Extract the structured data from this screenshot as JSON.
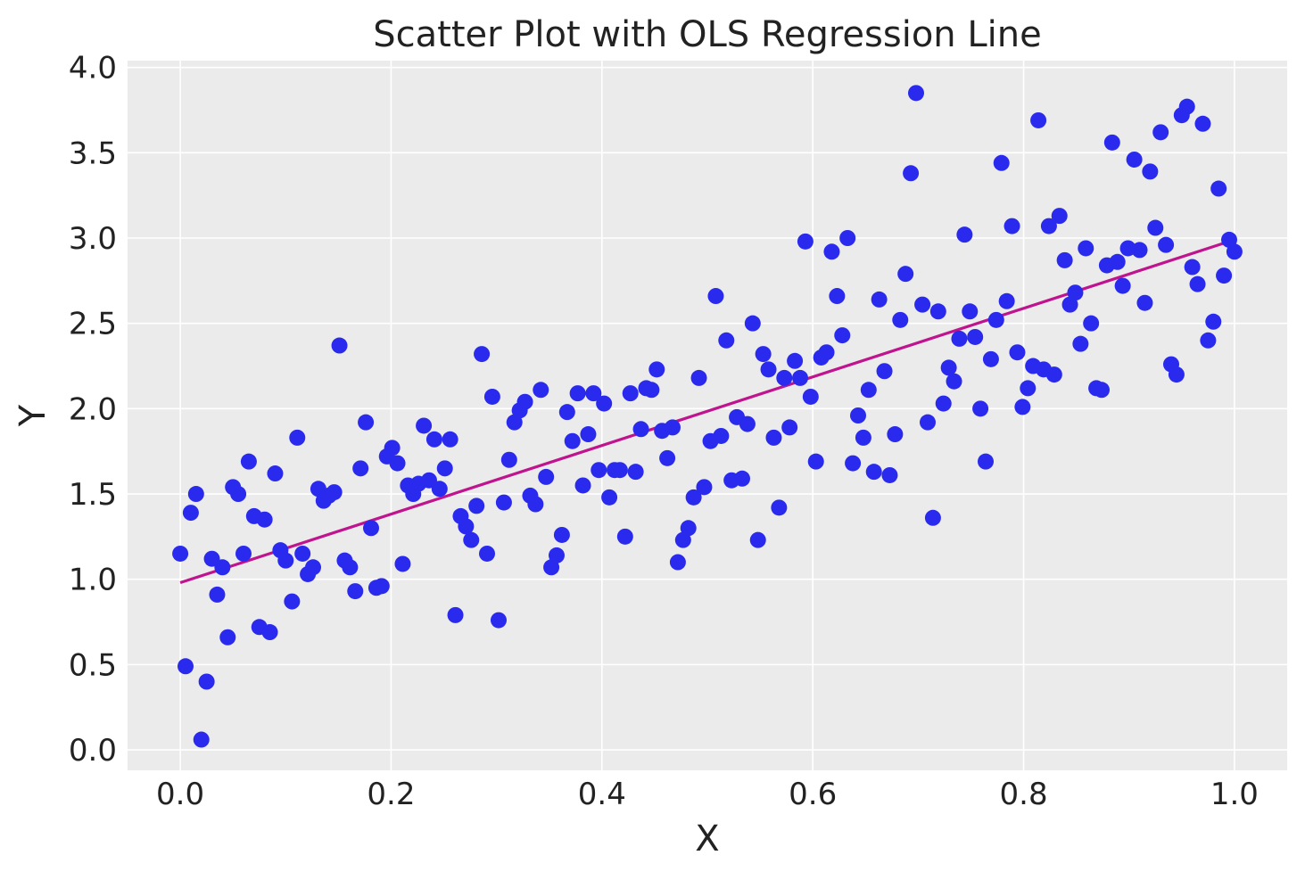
{
  "chart_data": {
    "type": "scatter",
    "title": "Scatter Plot with OLS Regression Line",
    "xlabel": "X",
    "ylabel": "Y",
    "xlim": [
      -0.05,
      1.05
    ],
    "ylim": [
      -0.12,
      4.04
    ],
    "xticks": [
      "0.0",
      "0.2",
      "0.4",
      "0.6",
      "0.8",
      "1.0"
    ],
    "yticks": [
      "0.0",
      "0.5",
      "1.0",
      "1.5",
      "2.0",
      "2.5",
      "3.0",
      "3.5",
      "4.0"
    ],
    "grid": true,
    "colors": {
      "points": "#2a2aef",
      "line": "#c0148f",
      "background": "#ebebeb",
      "grid": "#ffffff"
    },
    "regression_line": {
      "x": [
        0.0,
        1.0
      ],
      "y": [
        0.98,
        2.99
      ]
    },
    "points": [
      [
        0.0,
        1.15
      ],
      [
        0.005,
        0.49
      ],
      [
        0.01,
        1.39
      ],
      [
        0.015,
        1.5
      ],
      [
        0.02,
        0.06
      ],
      [
        0.025,
        0.4
      ],
      [
        0.03,
        1.12
      ],
      [
        0.035,
        0.91
      ],
      [
        0.04,
        1.07
      ],
      [
        0.045,
        0.66
      ],
      [
        0.05,
        1.54
      ],
      [
        0.055,
        1.5
      ],
      [
        0.06,
        1.15
      ],
      [
        0.065,
        1.69
      ],
      [
        0.07,
        1.37
      ],
      [
        0.075,
        0.72
      ],
      [
        0.08,
        1.35
      ],
      [
        0.085,
        0.69
      ],
      [
        0.09,
        1.62
      ],
      [
        0.095,
        1.17
      ],
      [
        0.1,
        1.11
      ],
      [
        0.106,
        0.87
      ],
      [
        0.111,
        1.83
      ],
      [
        0.116,
        1.15
      ],
      [
        0.121,
        1.03
      ],
      [
        0.126,
        1.07
      ],
      [
        0.131,
        1.53
      ],
      [
        0.136,
        1.46
      ],
      [
        0.141,
        1.49
      ],
      [
        0.146,
        1.51
      ],
      [
        0.151,
        2.37
      ],
      [
        0.156,
        1.11
      ],
      [
        0.161,
        1.07
      ],
      [
        0.166,
        0.93
      ],
      [
        0.171,
        1.65
      ],
      [
        0.176,
        1.92
      ],
      [
        0.181,
        1.3
      ],
      [
        0.186,
        0.95
      ],
      [
        0.191,
        0.96
      ],
      [
        0.196,
        1.72
      ],
      [
        0.201,
        1.77
      ],
      [
        0.206,
        1.68
      ],
      [
        0.211,
        1.09
      ],
      [
        0.216,
        1.55
      ],
      [
        0.221,
        1.5
      ],
      [
        0.226,
        1.56
      ],
      [
        0.231,
        1.9
      ],
      [
        0.236,
        1.58
      ],
      [
        0.241,
        1.82
      ],
      [
        0.246,
        1.53
      ],
      [
        0.251,
        1.65
      ],
      [
        0.256,
        1.82
      ],
      [
        0.261,
        0.79
      ],
      [
        0.266,
        1.37
      ],
      [
        0.271,
        1.31
      ],
      [
        0.276,
        1.23
      ],
      [
        0.281,
        1.43
      ],
      [
        0.286,
        2.32
      ],
      [
        0.291,
        1.15
      ],
      [
        0.296,
        2.07
      ],
      [
        0.302,
        0.76
      ],
      [
        0.307,
        1.45
      ],
      [
        0.312,
        1.7
      ],
      [
        0.317,
        1.92
      ],
      [
        0.322,
        1.99
      ],
      [
        0.327,
        2.04
      ],
      [
        0.332,
        1.49
      ],
      [
        0.337,
        1.44
      ],
      [
        0.342,
        2.11
      ],
      [
        0.347,
        1.6
      ],
      [
        0.352,
        1.07
      ],
      [
        0.357,
        1.14
      ],
      [
        0.362,
        1.26
      ],
      [
        0.367,
        1.98
      ],
      [
        0.372,
        1.81
      ],
      [
        0.377,
        2.09
      ],
      [
        0.382,
        1.55
      ],
      [
        0.387,
        1.85
      ],
      [
        0.392,
        2.09
      ],
      [
        0.397,
        1.64
      ],
      [
        0.402,
        2.03
      ],
      [
        0.407,
        1.48
      ],
      [
        0.412,
        1.64
      ],
      [
        0.417,
        1.64
      ],
      [
        0.422,
        1.25
      ],
      [
        0.427,
        2.09
      ],
      [
        0.432,
        1.63
      ],
      [
        0.437,
        1.88
      ],
      [
        0.442,
        2.12
      ],
      [
        0.447,
        2.11
      ],
      [
        0.452,
        2.23
      ],
      [
        0.457,
        1.87
      ],
      [
        0.462,
        1.71
      ],
      [
        0.467,
        1.89
      ],
      [
        0.472,
        1.1
      ],
      [
        0.477,
        1.23
      ],
      [
        0.482,
        1.3
      ],
      [
        0.487,
        1.48
      ],
      [
        0.492,
        2.18
      ],
      [
        0.497,
        1.54
      ],
      [
        0.503,
        1.81
      ],
      [
        0.508,
        2.66
      ],
      [
        0.513,
        1.84
      ],
      [
        0.518,
        2.4
      ],
      [
        0.523,
        1.58
      ],
      [
        0.528,
        1.95
      ],
      [
        0.533,
        1.59
      ],
      [
        0.538,
        1.91
      ],
      [
        0.543,
        2.5
      ],
      [
        0.548,
        1.23
      ],
      [
        0.553,
        2.32
      ],
      [
        0.558,
        2.23
      ],
      [
        0.563,
        1.83
      ],
      [
        0.568,
        1.42
      ],
      [
        0.573,
        2.18
      ],
      [
        0.578,
        1.89
      ],
      [
        0.583,
        2.28
      ],
      [
        0.588,
        2.18
      ],
      [
        0.593,
        2.98
      ],
      [
        0.598,
        2.07
      ],
      [
        0.603,
        1.69
      ],
      [
        0.608,
        2.3
      ],
      [
        0.613,
        2.33
      ],
      [
        0.618,
        2.92
      ],
      [
        0.623,
        2.66
      ],
      [
        0.628,
        2.43
      ],
      [
        0.633,
        3.0
      ],
      [
        0.638,
        1.68
      ],
      [
        0.643,
        1.96
      ],
      [
        0.648,
        1.83
      ],
      [
        0.653,
        2.11
      ],
      [
        0.658,
        1.63
      ],
      [
        0.663,
        2.64
      ],
      [
        0.668,
        2.22
      ],
      [
        0.673,
        1.61
      ],
      [
        0.678,
        1.85
      ],
      [
        0.683,
        2.52
      ],
      [
        0.688,
        2.79
      ],
      [
        0.693,
        3.38
      ],
      [
        0.698,
        3.85
      ],
      [
        0.704,
        2.61
      ],
      [
        0.709,
        1.92
      ],
      [
        0.714,
        1.36
      ],
      [
        0.719,
        2.57
      ],
      [
        0.724,
        2.03
      ],
      [
        0.729,
        2.24
      ],
      [
        0.734,
        2.16
      ],
      [
        0.739,
        2.41
      ],
      [
        0.744,
        3.02
      ],
      [
        0.749,
        2.57
      ],
      [
        0.754,
        2.42
      ],
      [
        0.759,
        2.0
      ],
      [
        0.764,
        1.69
      ],
      [
        0.769,
        2.29
      ],
      [
        0.774,
        2.52
      ],
      [
        0.779,
        3.44
      ],
      [
        0.784,
        2.63
      ],
      [
        0.789,
        3.07
      ],
      [
        0.794,
        2.33
      ],
      [
        0.799,
        2.01
      ],
      [
        0.804,
        2.12
      ],
      [
        0.809,
        2.25
      ],
      [
        0.814,
        3.69
      ],
      [
        0.819,
        2.23
      ],
      [
        0.824,
        3.07
      ],
      [
        0.829,
        2.2
      ],
      [
        0.834,
        3.13
      ],
      [
        0.839,
        2.87
      ],
      [
        0.844,
        2.61
      ],
      [
        0.849,
        2.68
      ],
      [
        0.854,
        2.38
      ],
      [
        0.859,
        2.94
      ],
      [
        0.864,
        2.5
      ],
      [
        0.869,
        2.12
      ],
      [
        0.874,
        2.11
      ],
      [
        0.879,
        2.84
      ],
      [
        0.884,
        3.56
      ],
      [
        0.889,
        2.86
      ],
      [
        0.894,
        2.72
      ],
      [
        0.899,
        2.94
      ],
      [
        0.905,
        3.46
      ],
      [
        0.91,
        2.93
      ],
      [
        0.915,
        2.62
      ],
      [
        0.92,
        3.39
      ],
      [
        0.925,
        3.06
      ],
      [
        0.93,
        3.62
      ],
      [
        0.935,
        2.96
      ],
      [
        0.94,
        2.26
      ],
      [
        0.945,
        2.2
      ],
      [
        0.95,
        3.72
      ],
      [
        0.955,
        3.77
      ],
      [
        0.96,
        2.83
      ],
      [
        0.965,
        2.73
      ],
      [
        0.97,
        3.67
      ],
      [
        0.975,
        2.4
      ],
      [
        0.98,
        2.51
      ],
      [
        0.985,
        3.29
      ],
      [
        0.99,
        2.78
      ],
      [
        0.995,
        2.99
      ],
      [
        1.0,
        2.92
      ]
    ]
  }
}
